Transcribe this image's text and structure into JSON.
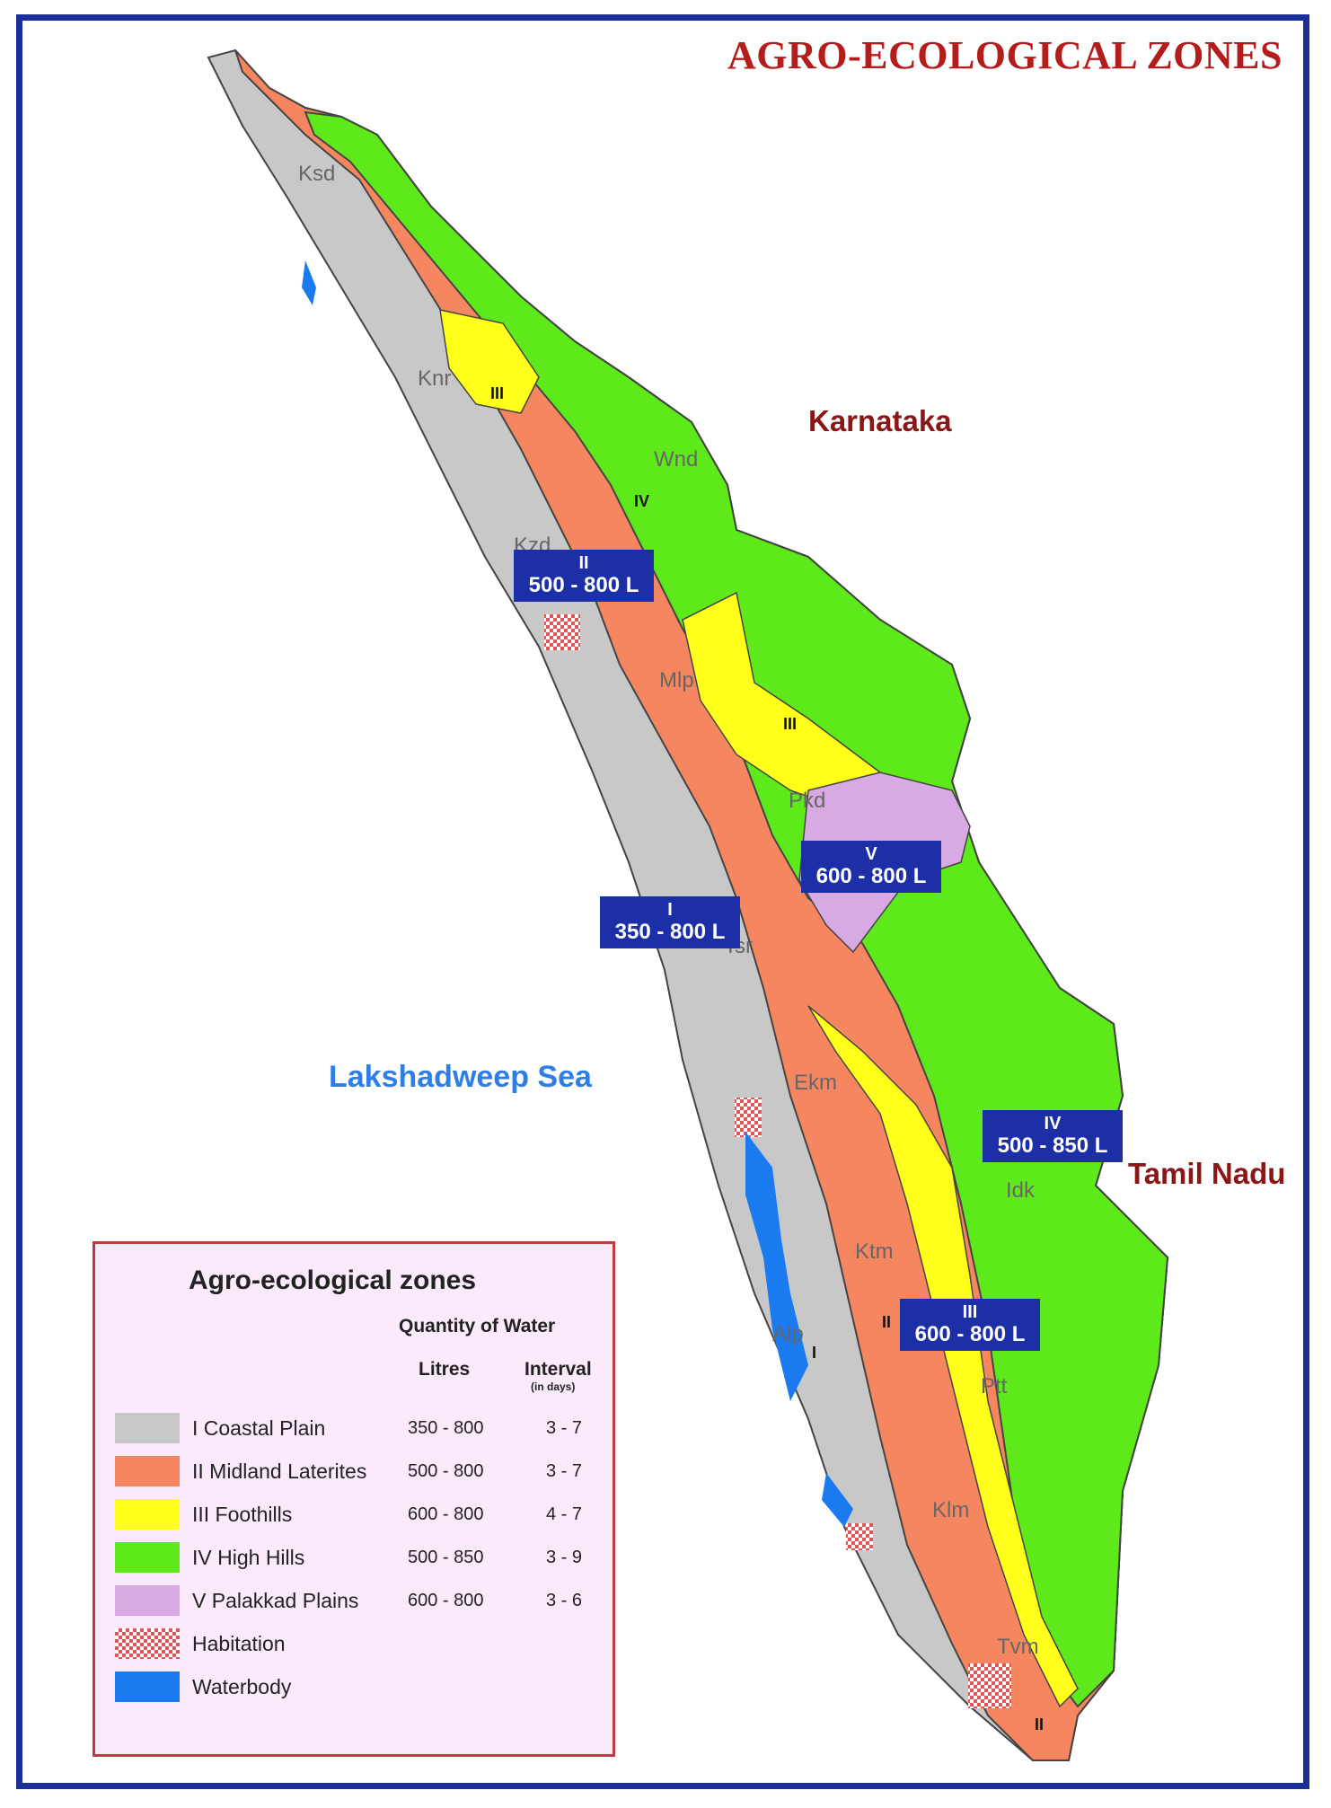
{
  "title": "AGRO-ECOLOGICAL ZONES",
  "regions": {
    "karnataka": "Karnataka",
    "tamil_nadu": "Tamil Nadu",
    "sea": "Lakshadweep Sea"
  },
  "districts": [
    "Ksd",
    "Knr",
    "Wnd",
    "Kzd",
    "Mlp",
    "Pkd",
    "Tsr",
    "Ekm",
    "Idk",
    "Ktm",
    "Alp",
    "Ptt",
    "Klm",
    "Tvm"
  ],
  "zone_numerals": [
    "IV",
    "III",
    "III",
    "I",
    "II",
    "II"
  ],
  "zone_boxes": [
    {
      "zone": "II",
      "range": "500 - 800 L"
    },
    {
      "zone": "V",
      "range": "600 - 800 L"
    },
    {
      "zone": "I",
      "range": "350 - 800 L"
    },
    {
      "zone": "IV",
      "range": "500 - 850 L"
    },
    {
      "zone": "III",
      "range": "600 - 800 L"
    }
  ],
  "legend": {
    "title": "Agro-ecological zones",
    "quantity_header": "Quantity of Water",
    "litres_header": "Litres",
    "interval_header": "Interval",
    "interval_unit": "(in days)",
    "items": [
      {
        "label": "I Coastal Plain",
        "litres": "350 - 800",
        "interval": "3 - 7",
        "color": "#c8c8c8"
      },
      {
        "label": "II Midland Laterites",
        "litres": "500 - 800",
        "interval": "3 - 7",
        "color": "#f6865f"
      },
      {
        "label": "III Foothills",
        "litres": "600 - 800",
        "interval": "4 - 7",
        "color": "#ffff1a"
      },
      {
        "label": "IV High Hills",
        "litres": "500 - 850",
        "interval": "3 - 9",
        "color": "#5eea1a"
      },
      {
        "label": "V Palakkad Plains",
        "litres": "600 - 800",
        "interval": "3 - 6",
        "color": "#d9a9e3"
      },
      {
        "label": "Habitation",
        "litres": "",
        "interval": "",
        "color": "#e25555"
      },
      {
        "label": "Waterbody",
        "litres": "",
        "interval": "",
        "color": "#1a7af0"
      }
    ]
  }
}
